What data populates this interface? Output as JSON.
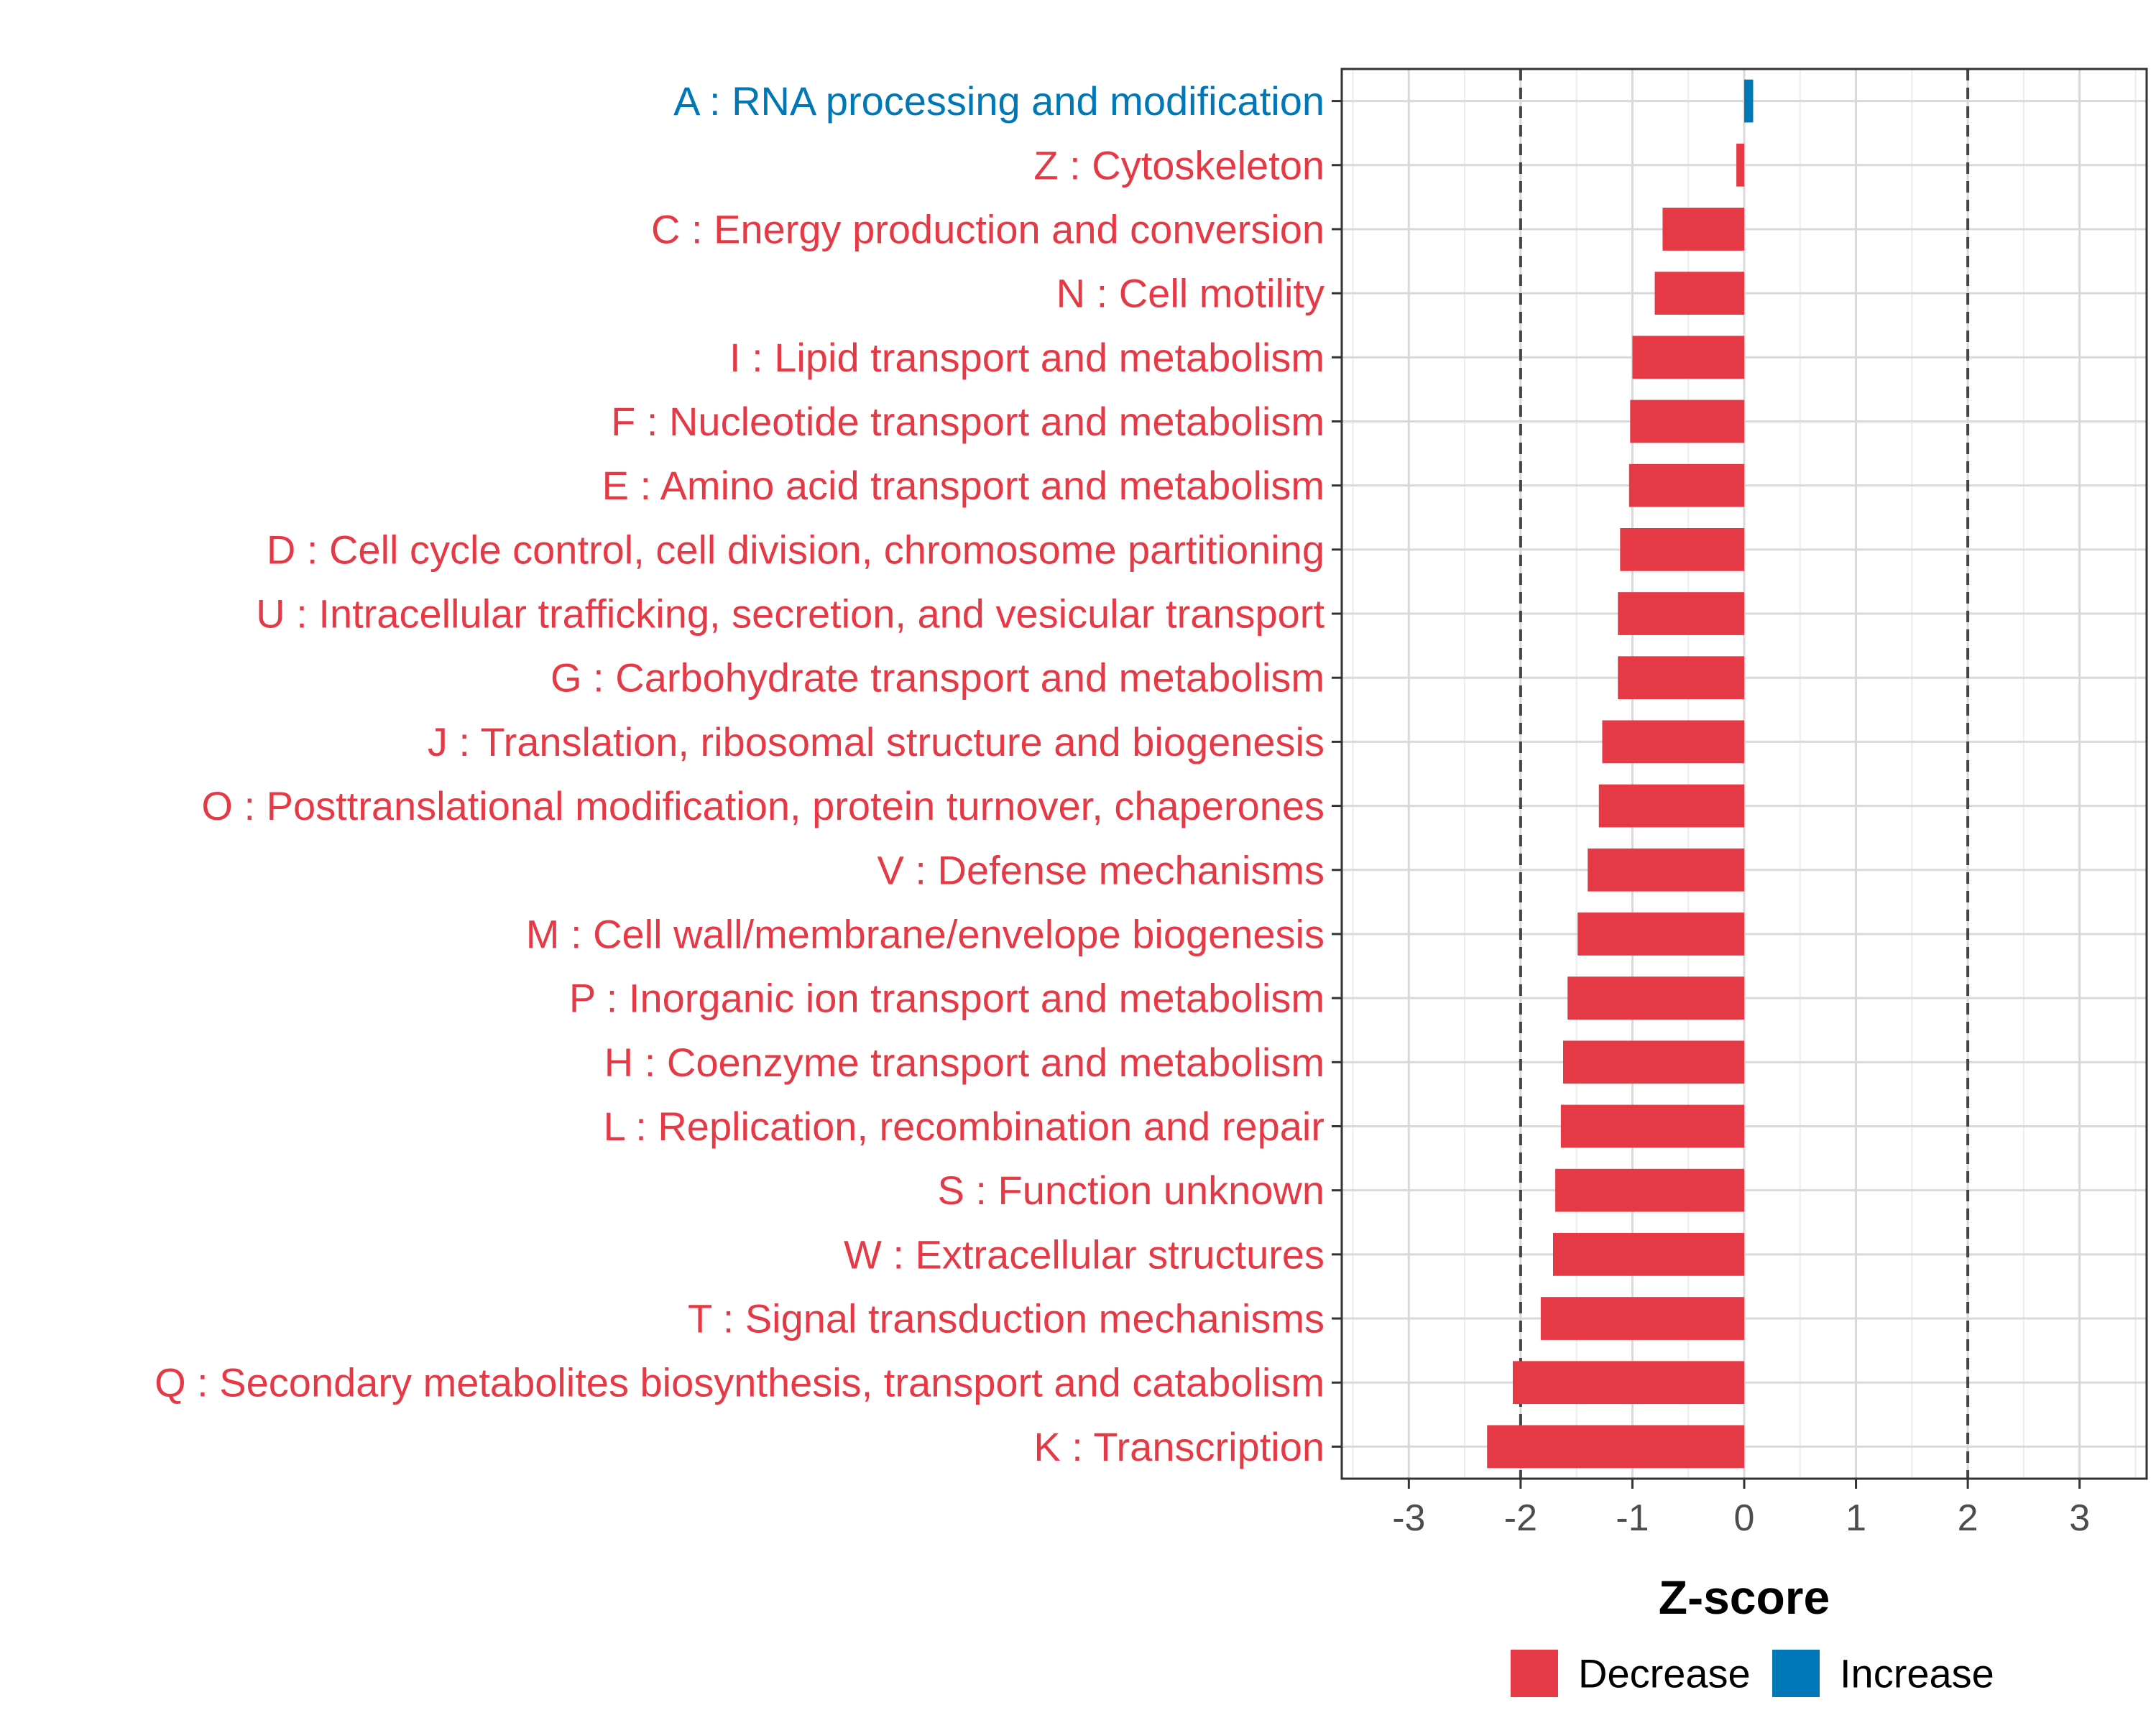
{
  "chart_data": {
    "type": "bar",
    "orientation": "horizontal",
    "xlabel": "Z-score",
    "ylabel": "",
    "xlim": [
      -3.6,
      3.6
    ],
    "x_ticks": [
      -3,
      -2,
      -1,
      0,
      1,
      2,
      3
    ],
    "grid": true,
    "threshold_lines": [
      -2,
      2
    ],
    "legend_position": "bottom",
    "legend": [
      {
        "name": "Decrease",
        "color": "#E63946"
      },
      {
        "name": "Increase",
        "color": "#0077B6"
      }
    ],
    "categories": [
      "A : RNA processing and modification",
      "Z : Cytoskeleton",
      "C : Energy production and conversion",
      "N : Cell motility",
      "I : Lipid transport and metabolism",
      "F : Nucleotide transport and metabolism",
      "E : Amino acid transport and metabolism",
      "D : Cell cycle control, cell division, chromosome partitioning",
      "U : Intracellular trafficking, secretion, and vesicular transport",
      "G : Carbohydrate transport and metabolism",
      "J : Translation, ribosomal structure and biogenesis",
      "O : Posttranslational modification, protein turnover, chaperones",
      "V : Defense mechanisms",
      "M : Cell wall/membrane/envelope biogenesis",
      "P : Inorganic ion transport and metabolism",
      "H : Coenzyme transport and metabolism",
      "L : Replication, recombination and repair",
      "S : Function unknown",
      "W : Extracellular structures",
      "T : Signal transduction mechanisms",
      "Q : Secondary metabolites biosynthesis, transport and catabolism",
      "K : Transcription"
    ],
    "values": [
      0.08,
      -0.07,
      -0.73,
      -0.8,
      -1.0,
      -1.02,
      -1.03,
      -1.11,
      -1.13,
      -1.13,
      -1.27,
      -1.3,
      -1.4,
      -1.49,
      -1.58,
      -1.62,
      -1.64,
      -1.69,
      -1.71,
      -1.82,
      -2.07,
      -2.3
    ],
    "direction": [
      "Increase",
      "Decrease",
      "Decrease",
      "Decrease",
      "Decrease",
      "Decrease",
      "Decrease",
      "Decrease",
      "Decrease",
      "Decrease",
      "Decrease",
      "Decrease",
      "Decrease",
      "Decrease",
      "Decrease",
      "Decrease",
      "Decrease",
      "Decrease",
      "Decrease",
      "Decrease",
      "Decrease",
      "Decrease"
    ]
  }
}
